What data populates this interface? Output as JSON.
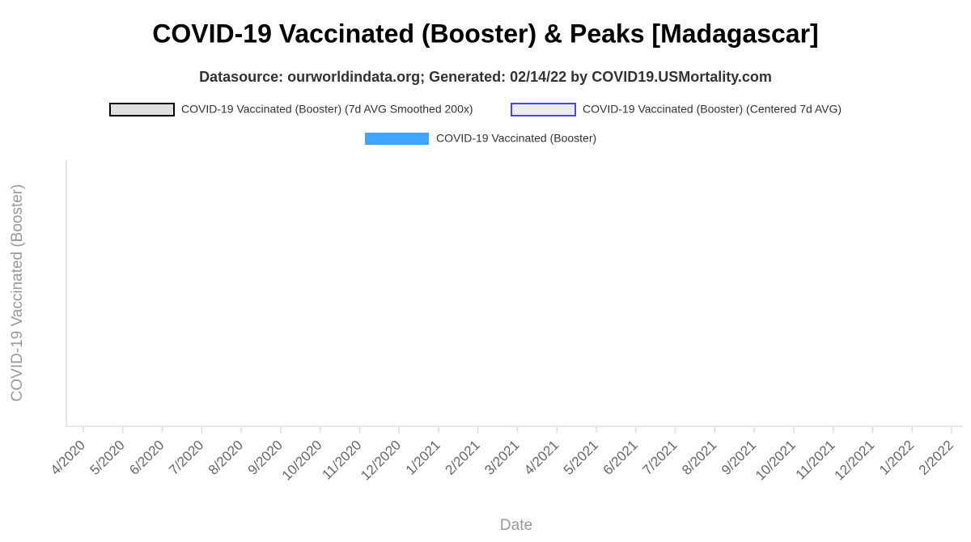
{
  "chart_data": {
    "type": "line",
    "title": "COVID-19 Vaccinated (Booster) & Peaks [Madagascar]",
    "subtitle": "Datasource: ourworldindata.org; Generated: 02/14/22 by COVID19.USMortality.com",
    "x_label": "Date",
    "y_label": "COVID-19 Vaccinated (Booster)",
    "categories": [
      "4/2020",
      "5/2020",
      "6/2020",
      "7/2020",
      "8/2020",
      "9/2020",
      "10/2020",
      "11/2020",
      "12/2020",
      "1/2021",
      "2/2021",
      "3/2021",
      "4/2021",
      "5/2021",
      "6/2021",
      "7/2021",
      "8/2021",
      "9/2021",
      "10/2021",
      "11/2021",
      "12/2021",
      "1/2022",
      "2/2022"
    ],
    "series": [
      {
        "name": "COVID-19 Vaccinated (Booster) (7d AVG Smoothed 200x)",
        "color": "#e0e0e0",
        "border_color": "#000000",
        "values": [
          null,
          null,
          null,
          null,
          null,
          null,
          null,
          null,
          null,
          null,
          null,
          null,
          null,
          null,
          null,
          null,
          null,
          null,
          null,
          null,
          null,
          null,
          null
        ]
      },
      {
        "name": "COVID-19 Vaccinated (Booster) (Centered 7d AVG)",
        "color": "#ececf4",
        "border_color": "#4a4ae0",
        "values": [
          null,
          null,
          null,
          null,
          null,
          null,
          null,
          null,
          null,
          null,
          null,
          null,
          null,
          null,
          null,
          null,
          null,
          null,
          null,
          null,
          null,
          null,
          null
        ]
      },
      {
        "name": "COVID-19 Vaccinated (Booster)",
        "color": "#3fa6ff",
        "border_color": "#3fa6ff",
        "values": [
          null,
          null,
          null,
          null,
          null,
          null,
          null,
          null,
          null,
          null,
          null,
          null,
          null,
          null,
          null,
          null,
          null,
          null,
          null,
          null,
          null,
          null,
          null
        ]
      }
    ]
  }
}
